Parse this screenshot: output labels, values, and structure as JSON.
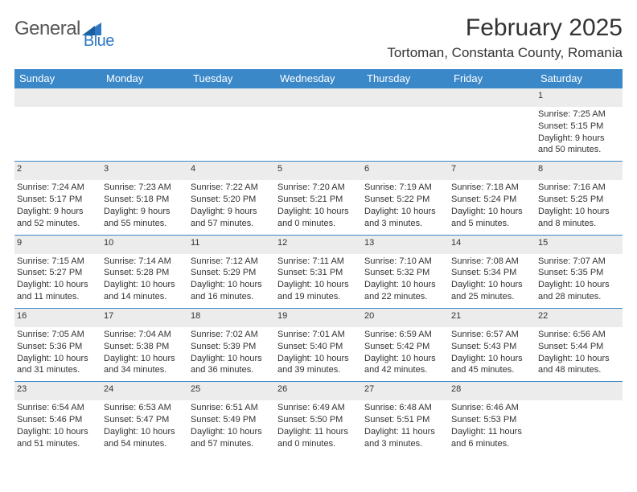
{
  "logo": {
    "word1": "General",
    "word2": "Blue"
  },
  "header": {
    "month": "February 2025",
    "location": "Tortoman, Constanta County, Romania"
  },
  "colors": {
    "header_bg": "#3b88c9",
    "header_text": "#ffffff",
    "daynum_bg": "#ececec",
    "row_border": "#3b88c9",
    "text": "#333333",
    "logo_gray": "#555555",
    "logo_blue": "#2f78c4"
  },
  "weekdays": [
    "Sunday",
    "Monday",
    "Tuesday",
    "Wednesday",
    "Thursday",
    "Friday",
    "Saturday"
  ],
  "weeks": [
    [
      null,
      null,
      null,
      null,
      null,
      null,
      {
        "n": "1",
        "sr": "Sunrise: 7:25 AM",
        "ss": "Sunset: 5:15 PM",
        "dl": "Daylight: 9 hours and 50 minutes."
      }
    ],
    [
      {
        "n": "2",
        "sr": "Sunrise: 7:24 AM",
        "ss": "Sunset: 5:17 PM",
        "dl": "Daylight: 9 hours and 52 minutes."
      },
      {
        "n": "3",
        "sr": "Sunrise: 7:23 AM",
        "ss": "Sunset: 5:18 PM",
        "dl": "Daylight: 9 hours and 55 minutes."
      },
      {
        "n": "4",
        "sr": "Sunrise: 7:22 AM",
        "ss": "Sunset: 5:20 PM",
        "dl": "Daylight: 9 hours and 57 minutes."
      },
      {
        "n": "5",
        "sr": "Sunrise: 7:20 AM",
        "ss": "Sunset: 5:21 PM",
        "dl": "Daylight: 10 hours and 0 minutes."
      },
      {
        "n": "6",
        "sr": "Sunrise: 7:19 AM",
        "ss": "Sunset: 5:22 PM",
        "dl": "Daylight: 10 hours and 3 minutes."
      },
      {
        "n": "7",
        "sr": "Sunrise: 7:18 AM",
        "ss": "Sunset: 5:24 PM",
        "dl": "Daylight: 10 hours and 5 minutes."
      },
      {
        "n": "8",
        "sr": "Sunrise: 7:16 AM",
        "ss": "Sunset: 5:25 PM",
        "dl": "Daylight: 10 hours and 8 minutes."
      }
    ],
    [
      {
        "n": "9",
        "sr": "Sunrise: 7:15 AM",
        "ss": "Sunset: 5:27 PM",
        "dl": "Daylight: 10 hours and 11 minutes."
      },
      {
        "n": "10",
        "sr": "Sunrise: 7:14 AM",
        "ss": "Sunset: 5:28 PM",
        "dl": "Daylight: 10 hours and 14 minutes."
      },
      {
        "n": "11",
        "sr": "Sunrise: 7:12 AM",
        "ss": "Sunset: 5:29 PM",
        "dl": "Daylight: 10 hours and 16 minutes."
      },
      {
        "n": "12",
        "sr": "Sunrise: 7:11 AM",
        "ss": "Sunset: 5:31 PM",
        "dl": "Daylight: 10 hours and 19 minutes."
      },
      {
        "n": "13",
        "sr": "Sunrise: 7:10 AM",
        "ss": "Sunset: 5:32 PM",
        "dl": "Daylight: 10 hours and 22 minutes."
      },
      {
        "n": "14",
        "sr": "Sunrise: 7:08 AM",
        "ss": "Sunset: 5:34 PM",
        "dl": "Daylight: 10 hours and 25 minutes."
      },
      {
        "n": "15",
        "sr": "Sunrise: 7:07 AM",
        "ss": "Sunset: 5:35 PM",
        "dl": "Daylight: 10 hours and 28 minutes."
      }
    ],
    [
      {
        "n": "16",
        "sr": "Sunrise: 7:05 AM",
        "ss": "Sunset: 5:36 PM",
        "dl": "Daylight: 10 hours and 31 minutes."
      },
      {
        "n": "17",
        "sr": "Sunrise: 7:04 AM",
        "ss": "Sunset: 5:38 PM",
        "dl": "Daylight: 10 hours and 34 minutes."
      },
      {
        "n": "18",
        "sr": "Sunrise: 7:02 AM",
        "ss": "Sunset: 5:39 PM",
        "dl": "Daylight: 10 hours and 36 minutes."
      },
      {
        "n": "19",
        "sr": "Sunrise: 7:01 AM",
        "ss": "Sunset: 5:40 PM",
        "dl": "Daylight: 10 hours and 39 minutes."
      },
      {
        "n": "20",
        "sr": "Sunrise: 6:59 AM",
        "ss": "Sunset: 5:42 PM",
        "dl": "Daylight: 10 hours and 42 minutes."
      },
      {
        "n": "21",
        "sr": "Sunrise: 6:57 AM",
        "ss": "Sunset: 5:43 PM",
        "dl": "Daylight: 10 hours and 45 minutes."
      },
      {
        "n": "22",
        "sr": "Sunrise: 6:56 AM",
        "ss": "Sunset: 5:44 PM",
        "dl": "Daylight: 10 hours and 48 minutes."
      }
    ],
    [
      {
        "n": "23",
        "sr": "Sunrise: 6:54 AM",
        "ss": "Sunset: 5:46 PM",
        "dl": "Daylight: 10 hours and 51 minutes."
      },
      {
        "n": "24",
        "sr": "Sunrise: 6:53 AM",
        "ss": "Sunset: 5:47 PM",
        "dl": "Daylight: 10 hours and 54 minutes."
      },
      {
        "n": "25",
        "sr": "Sunrise: 6:51 AM",
        "ss": "Sunset: 5:49 PM",
        "dl": "Daylight: 10 hours and 57 minutes."
      },
      {
        "n": "26",
        "sr": "Sunrise: 6:49 AM",
        "ss": "Sunset: 5:50 PM",
        "dl": "Daylight: 11 hours and 0 minutes."
      },
      {
        "n": "27",
        "sr": "Sunrise: 6:48 AM",
        "ss": "Sunset: 5:51 PM",
        "dl": "Daylight: 11 hours and 3 minutes."
      },
      {
        "n": "28",
        "sr": "Sunrise: 6:46 AM",
        "ss": "Sunset: 5:53 PM",
        "dl": "Daylight: 11 hours and 6 minutes."
      },
      null
    ]
  ]
}
